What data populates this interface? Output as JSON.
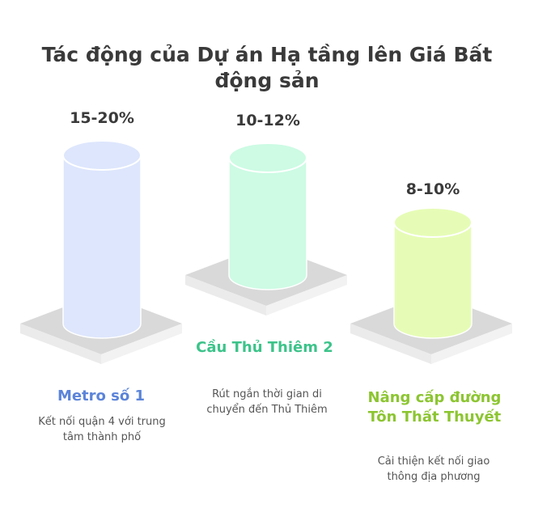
{
  "title": "Tác động của Dự án Hạ tầng lên Giá Bất động sản",
  "projects": [
    {
      "name": "Metro số 1",
      "impact": "15-20%",
      "description": "Kết nối quận 4 với trung tâm thành phố",
      "color": "#dde6fc",
      "label_color": "#5b84d9"
    },
    {
      "name": "Cầu Thủ Thiêm 2",
      "impact": "10-12%",
      "description": "Rút ngắn thời gian di chuyển đến Thủ Thiêm",
      "color": "#cdfbe4",
      "label_color": "#3cc38a"
    },
    {
      "name": "Nâng cấp đường Tôn Thất Thuyết",
      "impact": "8-10%",
      "description": "Cải thiện kết nối giao thông địa phương",
      "color": "#e6fcb6",
      "label_color": "#8cc531"
    }
  ]
}
